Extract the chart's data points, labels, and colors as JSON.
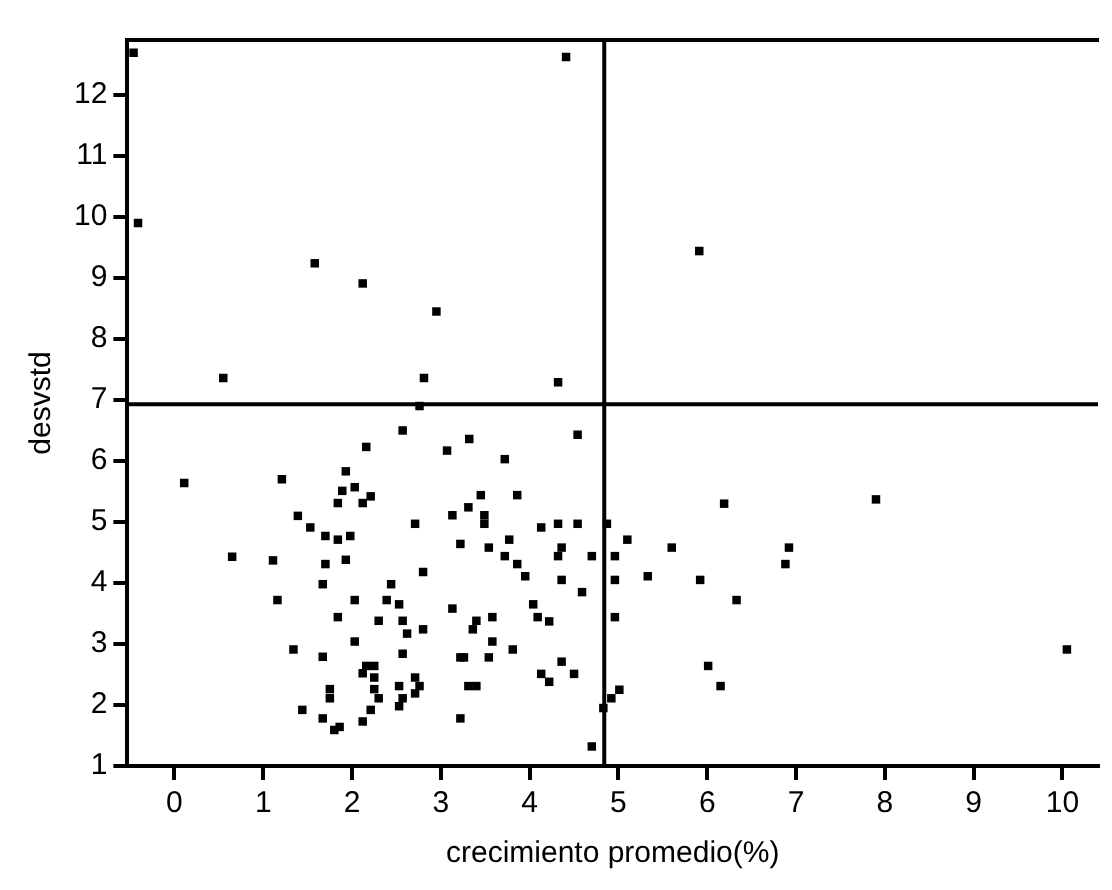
{
  "chart_data": {
    "type": "scatter",
    "xlabel": "crecimiento promedio(%)",
    "ylabel": "desvstd",
    "marker": "square",
    "grid": false,
    "legend": false,
    "xlim": [
      -0.53,
      10.4
    ],
    "xticks": [
      0,
      1,
      2,
      3,
      4,
      5,
      6,
      7,
      8,
      9,
      10
    ],
    "ylim": [
      1,
      12.9
    ],
    "yticks": [
      1,
      2,
      3,
      4,
      5,
      6,
      7,
      8,
      9,
      10,
      11,
      12
    ],
    "ref_lines": [
      {
        "axis": "x",
        "value": 4.84,
        "color": "#000000"
      },
      {
        "axis": "y",
        "value": 6.93,
        "color": "#000000"
      }
    ],
    "series": [
      {
        "color": "#000000",
        "x": [
          -0.46,
          -0.41,
          0.55,
          1.58,
          2.12,
          2.95,
          2.81,
          4.32,
          4.41,
          5.91,
          2.76,
          0.11,
          0.65,
          1.11,
          1.21,
          1.16,
          1.34,
          1.44,
          1.39,
          1.53,
          1.67,
          1.67,
          1.67,
          1.7,
          1.7,
          1.84,
          1.98,
          1.93,
          1.84,
          1.89,
          1.93,
          2.03,
          2.12,
          2.21,
          2.16,
          1.84,
          2.03,
          2.03,
          1.75,
          1.75,
          1.8,
          1.86,
          2.12,
          2.21,
          2.12,
          2.16,
          2.25,
          2.25,
          2.25,
          2.3,
          2.3,
          2.39,
          2.44,
          2.53,
          2.57,
          2.62,
          2.57,
          2.53,
          2.53,
          2.57,
          2.71,
          2.76,
          2.71,
          2.8,
          2.8,
          2.71,
          2.57,
          3.07,
          3.32,
          3.13,
          3.22,
          3.31,
          3.45,
          3.49,
          3.49,
          3.54,
          3.72,
          3.86,
          3.77,
          3.72,
          3.86,
          3.95,
          3.13,
          3.4,
          3.36,
          3.58,
          3.58,
          3.22,
          3.26,
          3.54,
          3.81,
          3.31,
          3.4,
          3.22,
          4.04,
          4.09,
          4.22,
          4.13,
          4.22,
          4.36,
          4.5,
          4.13,
          4.32,
          4.36,
          4.32,
          4.36,
          4.54,
          4.59,
          4.7,
          4.54,
          4.7,
          4.87,
          5.1,
          4.96,
          4.96,
          4.96,
          5.33,
          5.6,
          5.92,
          6.19,
          6.33,
          6.01,
          6.15,
          6.88,
          6.92,
          7.9,
          10.05,
          5.01,
          4.92,
          4.83
        ],
        "values": [
          12.69,
          9.9,
          7.36,
          9.24,
          8.91,
          8.45,
          7.36,
          7.29,
          12.62,
          9.44,
          6.9,
          5.64,
          4.43,
          4.37,
          5.7,
          3.72,
          2.91,
          1.92,
          5.1,
          4.91,
          1.78,
          2.79,
          3.98,
          4.31,
          4.77,
          4.71,
          4.77,
          4.38,
          5.31,
          5.51,
          5.83,
          5.57,
          5.31,
          5.42,
          6.23,
          3.44,
          3.72,
          3.04,
          2.26,
          2.11,
          1.59,
          1.64,
          1.73,
          1.92,
          2.52,
          2.64,
          2.64,
          2.45,
          2.26,
          2.11,
          3.38,
          3.72,
          3.98,
          3.65,
          3.38,
          3.17,
          2.84,
          2.31,
          1.98,
          2.11,
          2.45,
          2.31,
          2.19,
          3.24,
          4.18,
          4.97,
          6.5,
          6.17,
          6.36,
          5.11,
          4.64,
          5.24,
          5.44,
          5.11,
          4.97,
          4.58,
          6.03,
          5.44,
          4.71,
          4.44,
          4.31,
          4.11,
          3.58,
          3.38,
          3.24,
          3.44,
          3.04,
          2.78,
          2.78,
          2.78,
          2.91,
          2.31,
          2.31,
          1.78,
          3.65,
          3.44,
          3.37,
          2.51,
          2.38,
          2.71,
          2.51,
          4.91,
          4.97,
          4.58,
          4.44,
          4.05,
          4.97,
          3.85,
          4.44,
          6.43,
          1.32,
          4.97,
          4.71,
          4.44,
          4.05,
          3.44,
          4.11,
          4.58,
          4.05,
          5.3,
          3.72,
          2.64,
          2.31,
          4.31,
          4.58,
          5.37,
          2.91,
          2.25,
          2.11,
          1.95
        ]
      }
    ]
  }
}
